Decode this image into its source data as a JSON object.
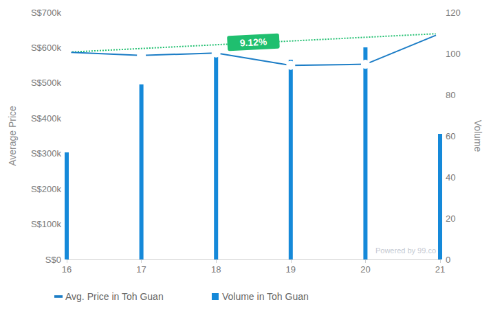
{
  "chart_data": {
    "type": "bar_line",
    "categories": [
      "16",
      "17",
      "18",
      "19",
      "20",
      "21"
    ],
    "series": [
      {
        "name": "Avg. Price in Toh Guan",
        "type": "line",
        "color": "#1c7dc6",
        "marker": "circle",
        "values": [
          587000,
          578000,
          585000,
          550000,
          553000,
          640000
        ]
      },
      {
        "name": "Volume in Toh Guan",
        "type": "bar",
        "color": "#1589d9",
        "axis": "y2",
        "values": [
          52,
          85,
          100,
          97,
          103,
          61
        ]
      }
    ],
    "ylabel": "Average Price",
    "y2label": "Volume",
    "ylim": [
      0,
      700000
    ],
    "yticks": [
      {
        "value": 0,
        "label": "S$0"
      },
      {
        "value": 100000,
        "label": "S$100k"
      },
      {
        "value": 200000,
        "label": "S$200k"
      },
      {
        "value": 300000,
        "label": "S$300k"
      },
      {
        "value": 400000,
        "label": "S$400k"
      },
      {
        "value": 500000,
        "label": "S$500k"
      },
      {
        "value": 600000,
        "label": "S$600k"
      },
      {
        "value": 700000,
        "label": "S$700k"
      }
    ],
    "y2lim": [
      0,
      120
    ],
    "y2ticks": [
      0,
      20,
      40,
      60,
      80,
      100,
      120
    ],
    "trend": {
      "label": "9.12%",
      "color": "#1fbf6f",
      "line_style": "dotted"
    },
    "credit": "Powered by 99.co",
    "grid": false,
    "legend": "bottom left"
  }
}
